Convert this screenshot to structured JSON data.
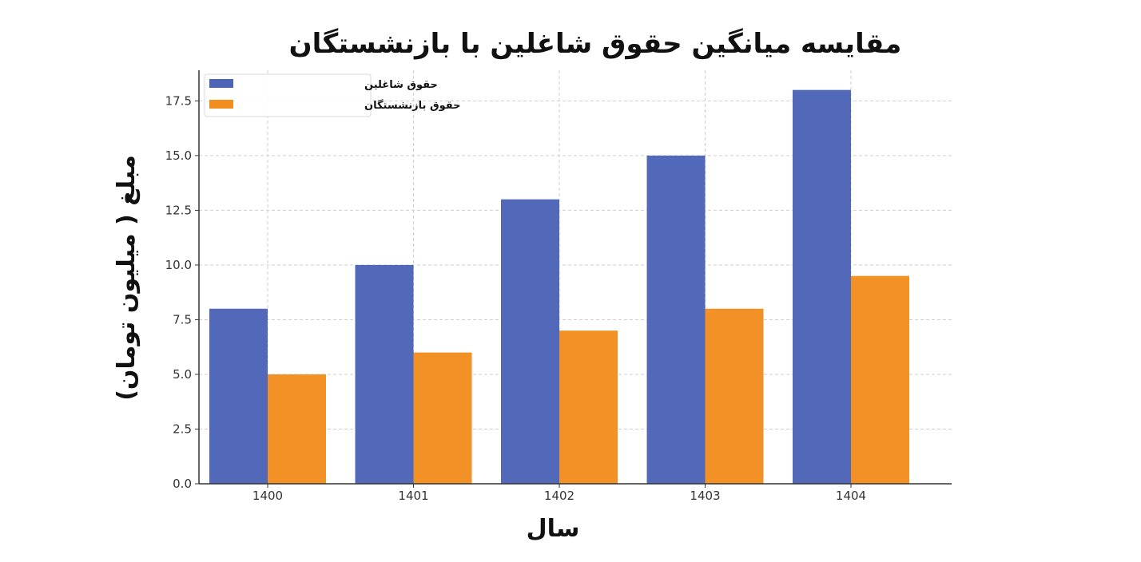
{
  "chart_data": {
    "type": "bar",
    "title": "مقایسه میانگین حقوق شاغلین با بازنشستگان",
    "xlabel": "سال",
    "ylabel": "مبلغ ( میلیون تومان)",
    "categories": [
      "1400",
      "1401",
      "1402",
      "1403",
      "1404"
    ],
    "series": [
      {
        "name": "حقوق شاغلین",
        "color": "#4c63b6",
        "values": [
          8,
          10,
          13,
          15,
          18
        ]
      },
      {
        "name": "حقوق بازنشستگان",
        "color": "#f28e1f",
        "values": [
          5,
          6,
          7,
          8,
          9.5
        ]
      }
    ],
    "ylim": [
      0,
      18.9
    ],
    "yticks": [
      "0.0",
      "2.5",
      "5.0",
      "7.5",
      "10.0",
      "12.5",
      "15.0",
      "17.5"
    ],
    "grid": true,
    "legend": "top-left"
  }
}
